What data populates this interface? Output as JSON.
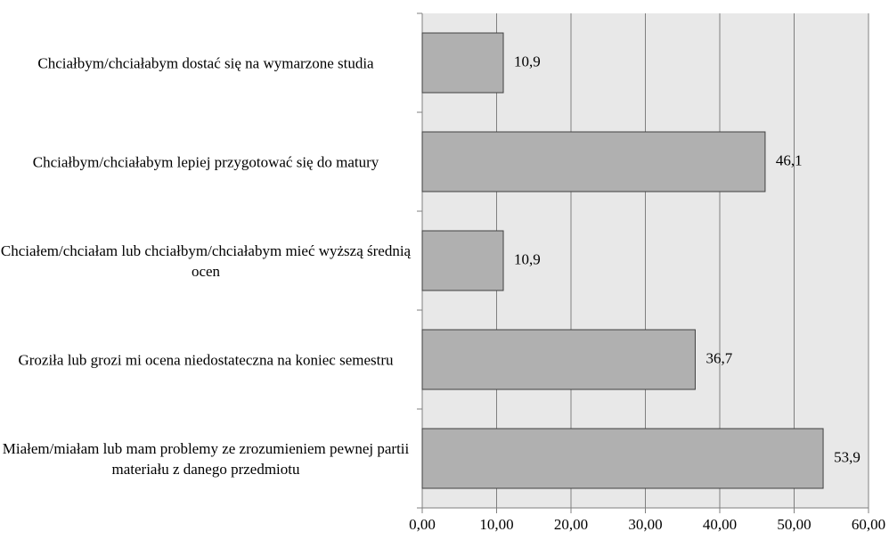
{
  "chart_data": {
    "type": "bar",
    "orientation": "horizontal",
    "categories": [
      "Chciałbym/chciałabym dostać się na wymarzone studia",
      "Chciałbym/chciałabym lepiej przygotować się do matury",
      "Chciałem/chciałam lub chciałbym/chciałabym mieć wyższą średnią ocen",
      "Groziła lub grozi mi ocena niedostateczna na koniec semestru",
      "Miałem/miałam lub mam problemy ze zrozumieniem pewnej partii materiału z danego przedmiotu"
    ],
    "values": [
      10.9,
      46.1,
      10.9,
      36.7,
      53.9
    ],
    "value_labels": [
      "10,9",
      "46,1",
      "10,9",
      "36,7",
      "53,9"
    ],
    "color": "#b0b0b0",
    "xlim": [
      0,
      60
    ],
    "xticks": [
      {
        "value": 0,
        "label": "0,00"
      },
      {
        "value": 10,
        "label": "10,00"
      },
      {
        "value": 20,
        "label": "20,00"
      },
      {
        "value": 30,
        "label": "30,00"
      },
      {
        "value": 40,
        "label": "40,00"
      },
      {
        "value": 50,
        "label": "50,00"
      },
      {
        "value": 60,
        "label": "60,00"
      }
    ],
    "grid": true
  }
}
